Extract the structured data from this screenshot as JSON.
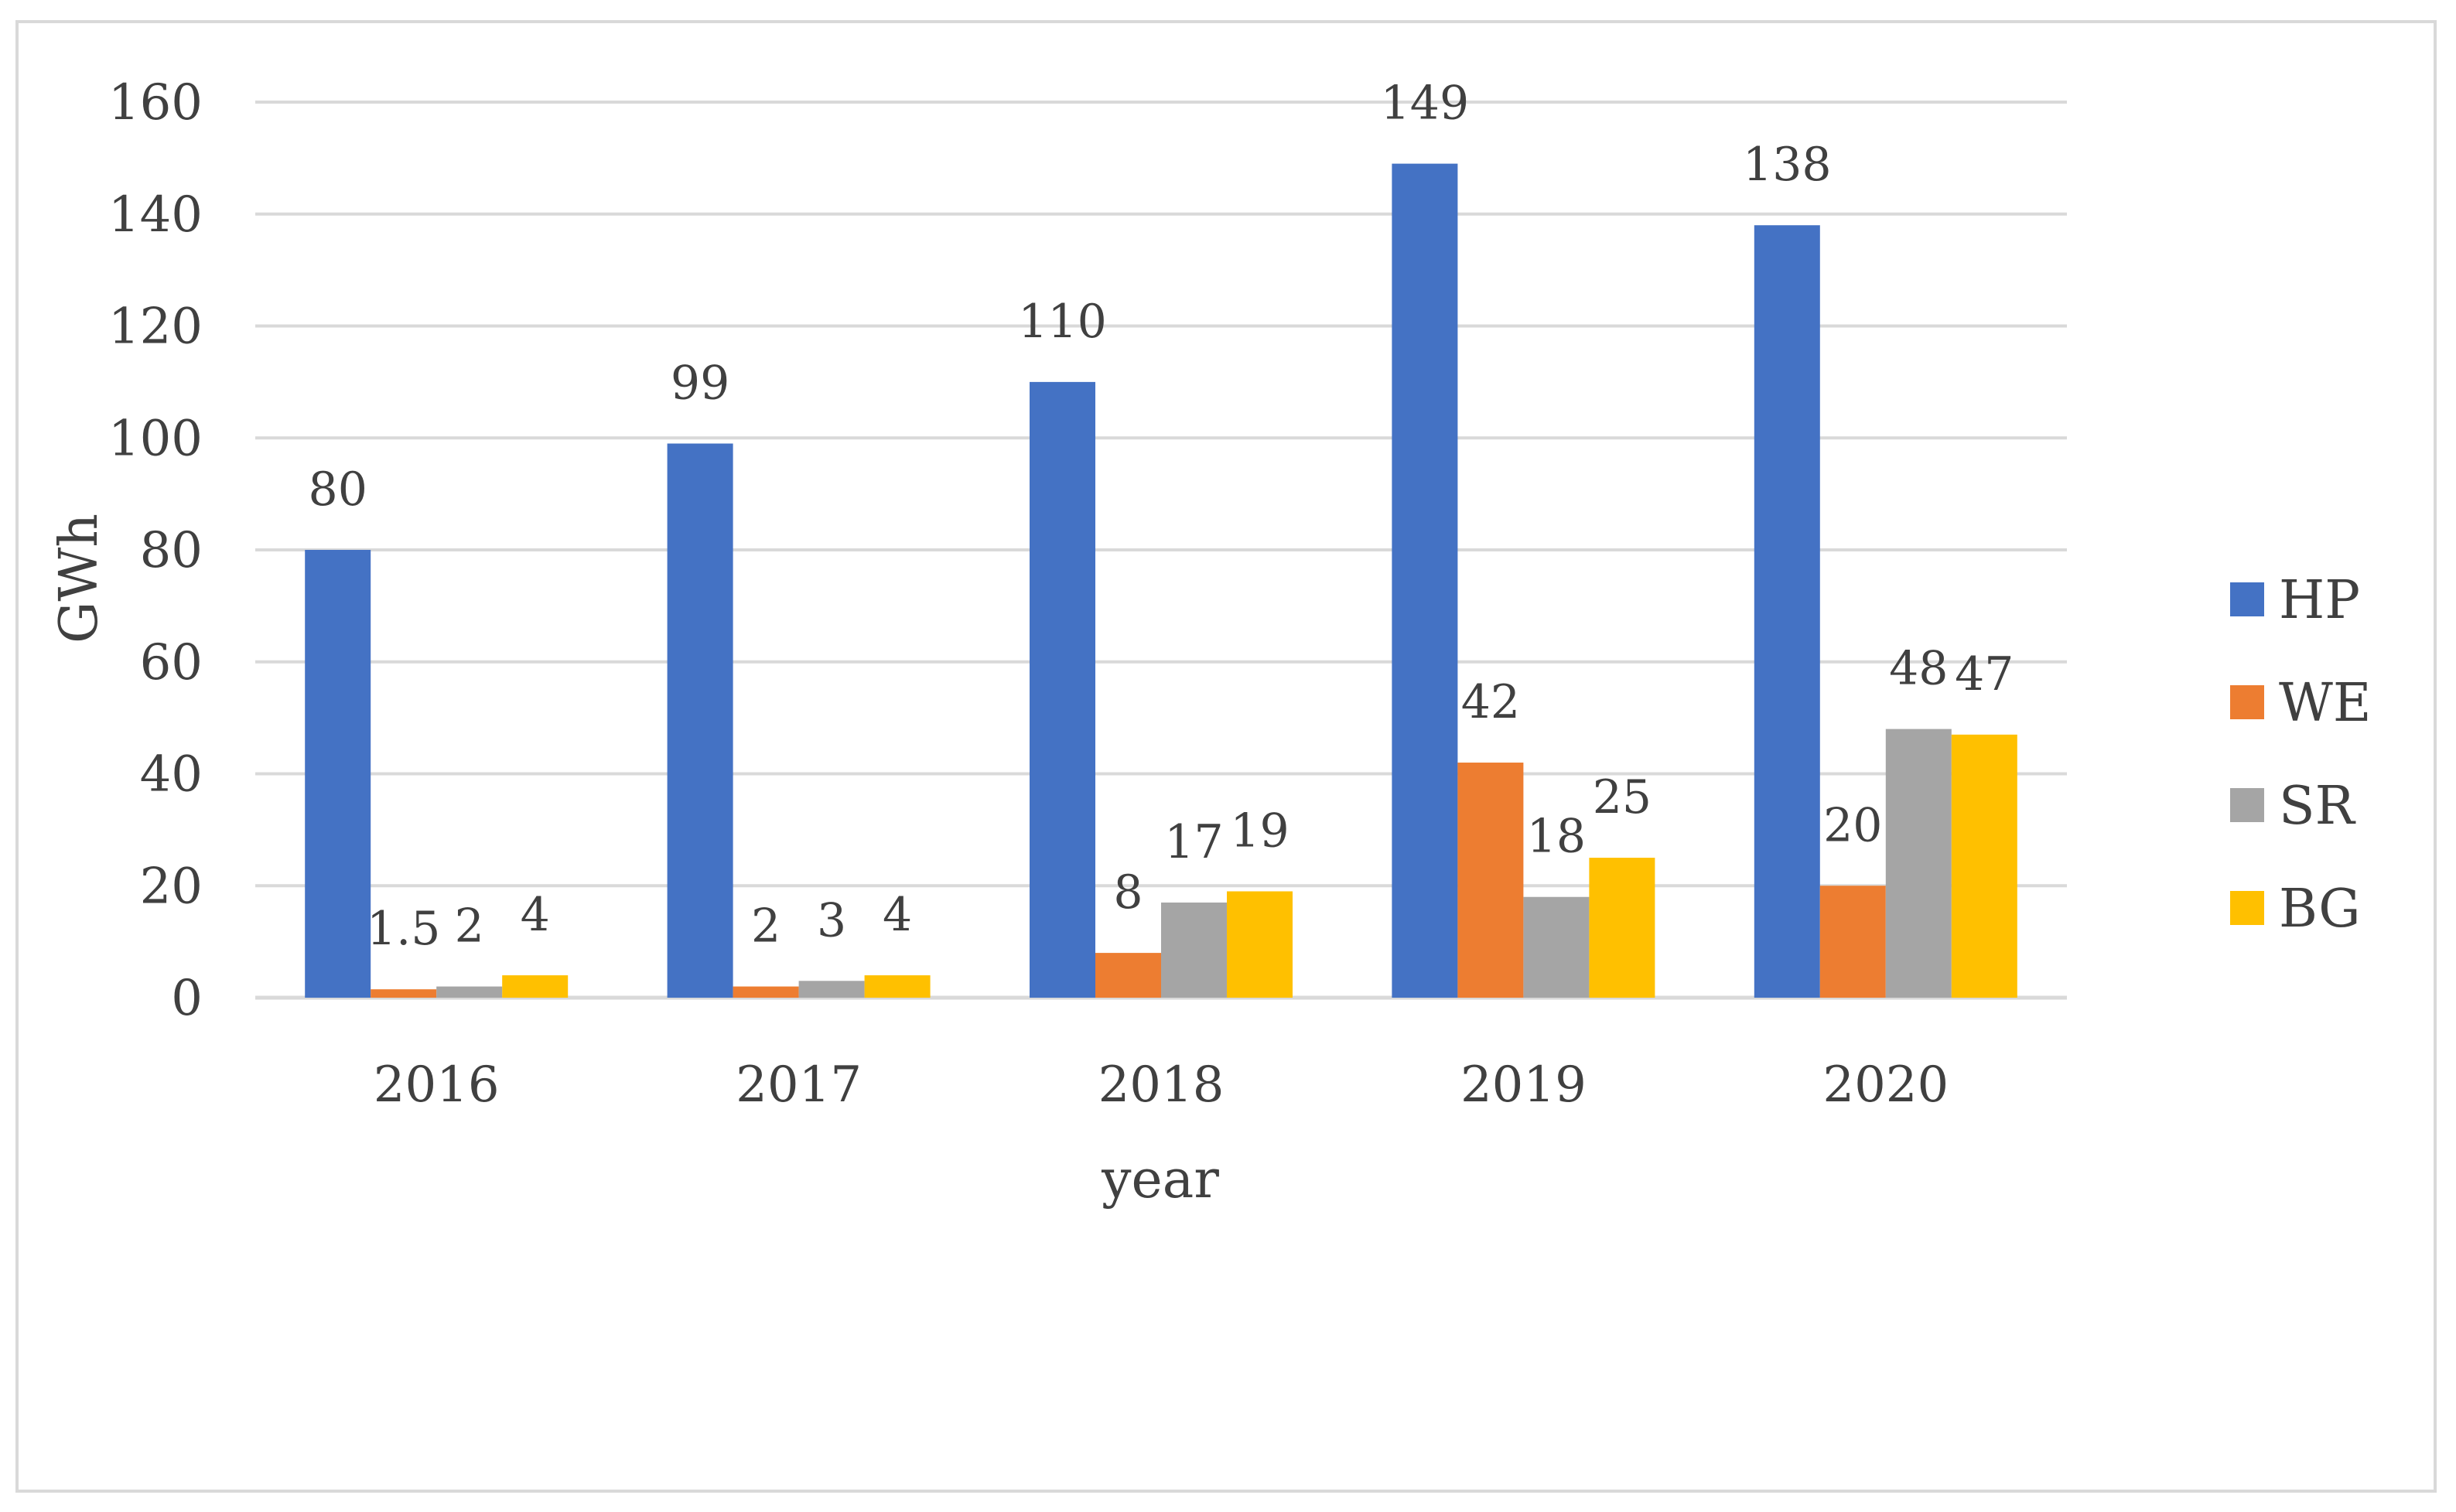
{
  "chart_data": {
    "type": "bar",
    "title": "",
    "xlabel": "year",
    "ylabel": "GWh",
    "ylim": [
      0,
      160
    ],
    "yticks": [
      0,
      20,
      40,
      60,
      80,
      100,
      120,
      140,
      160
    ],
    "grid": true,
    "legend_position": "right",
    "categories": [
      "2016",
      "2017",
      "2018",
      "2019",
      "2020"
    ],
    "series": [
      {
        "name": "HP",
        "color": "#4472C4",
        "values": [
          80,
          99,
          110,
          149,
          138
        ],
        "labels": [
          "80",
          "99",
          "110",
          "149",
          "138"
        ]
      },
      {
        "name": "WE",
        "color": "#ED7D31",
        "values": [
          1.5,
          2,
          8,
          42,
          20
        ],
        "labels": [
          "1.5",
          "2",
          "8",
          "42",
          "20"
        ]
      },
      {
        "name": "SR",
        "color": "#A5A5A5",
        "values": [
          2,
          3,
          17,
          18,
          48
        ],
        "labels": [
          "2",
          "3",
          "17",
          "18",
          "48"
        ]
      },
      {
        "name": "BG",
        "color": "#FFC000",
        "values": [
          4,
          4,
          19,
          25,
          47
        ],
        "labels": [
          "4",
          "4",
          "19",
          "25",
          "47"
        ]
      }
    ]
  }
}
